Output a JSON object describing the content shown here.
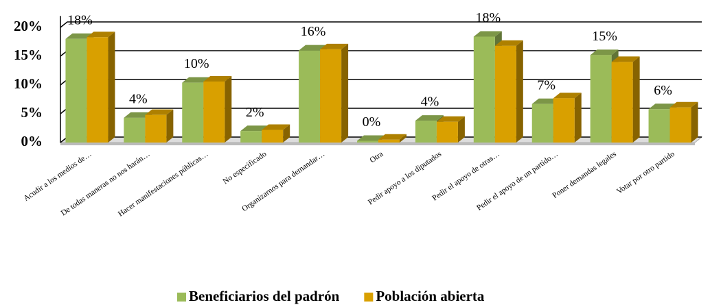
{
  "chart_data": {
    "type": "bar3d",
    "categories": [
      "Acudir a los medios de…",
      "De todas maneras no nos harán…",
      "Hacer manifestaciones públicas…",
      "No especificado",
      "Organizarnos para demandar…",
      "Otra",
      "Pedir apoyo a los diputados",
      "Pedir el apoyo de otras…",
      "Pedir el apoyo de un partido…",
      "Poner demandas legales",
      "Votar por otro partido"
    ],
    "series": [
      {
        "name": "Beneficiarios del padrón",
        "color": "#9bbb59",
        "values": [
          18,
          4.3,
          10.4,
          2,
          16,
          0.3,
          3.8,
          18.4,
          6.7,
          15.2,
          5.8
        ],
        "value_labels": [
          "18%",
          "4%",
          "10%",
          "2%",
          "16%",
          "0%",
          "4%",
          "18%",
          "7%",
          "15%",
          "6%"
        ]
      },
      {
        "name": "Población abierta",
        "color": "#d9a000",
        "values": [
          18.3,
          4.8,
          10.6,
          2.2,
          16.2,
          0.5,
          3.6,
          16.8,
          7.7,
          14,
          6.1
        ]
      }
    ],
    "ylim": [
      0,
      22
    ],
    "yticks": [
      {
        "value": 0,
        "label": "0%"
      },
      {
        "value": 5,
        "label": "5%"
      },
      {
        "value": 10,
        "label": "10%"
      },
      {
        "value": 15,
        "label": "15%"
      },
      {
        "value": 20,
        "label": "20%"
      }
    ],
    "grid": true
  }
}
